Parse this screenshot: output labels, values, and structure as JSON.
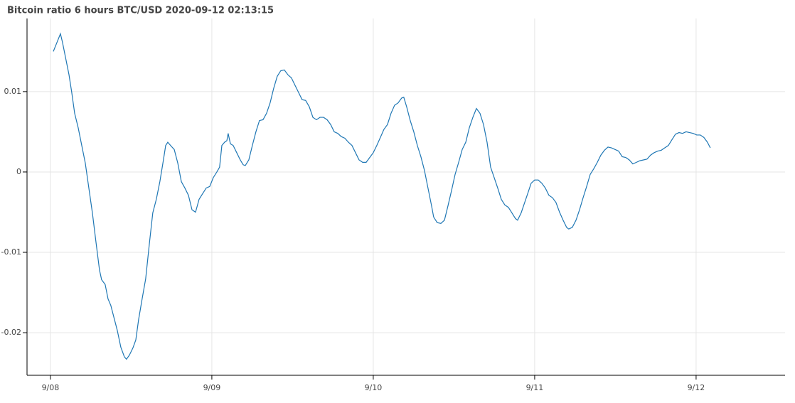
{
  "chart_data": {
    "type": "line",
    "title": "Bitcoin ratio 6 hours BTC/USD 2020-09-12 02:13:15",
    "color": "#1f77b4",
    "grid": true,
    "xlim": [
      7.855,
      12.551
    ],
    "ylim": [
      -0.0253,
      0.0191
    ],
    "xticks": [
      {
        "value": 8,
        "label": "9/08"
      },
      {
        "value": 9,
        "label": "9/09"
      },
      {
        "value": 10,
        "label": "9/10"
      },
      {
        "value": 11,
        "label": "9/11"
      },
      {
        "value": 12,
        "label": "9/12"
      }
    ],
    "yticks": [
      -0.02,
      -0.01,
      0,
      0.01
    ],
    "x": [
      8.018,
      8.04,
      8.062,
      8.075,
      8.093,
      8.115,
      8.132,
      8.15,
      8.172,
      8.194,
      8.216,
      8.238,
      8.26,
      8.282,
      8.304,
      8.317,
      8.339,
      8.357,
      8.374,
      8.392,
      8.414,
      8.436,
      8.458,
      8.471,
      8.489,
      8.511,
      8.529,
      8.546,
      8.568,
      8.59,
      8.612,
      8.634,
      8.656,
      8.678,
      8.7,
      8.714,
      8.727,
      8.744,
      8.767,
      8.789,
      8.811,
      8.833,
      8.855,
      8.877,
      8.899,
      8.921,
      8.943,
      8.965,
      8.987,
      9.009,
      9.031,
      9.048,
      9.062,
      9.079,
      9.093,
      9.101,
      9.115,
      9.132,
      9.154,
      9.176,
      9.194,
      9.207,
      9.229,
      9.251,
      9.273,
      9.295,
      9.317,
      9.339,
      9.361,
      9.383,
      9.405,
      9.427,
      9.449,
      9.471,
      9.493,
      9.515,
      9.537,
      9.559,
      9.581,
      9.604,
      9.626,
      9.648,
      9.67,
      9.692,
      9.714,
      9.736,
      9.758,
      9.78,
      9.802,
      9.824,
      9.846,
      9.868,
      9.89,
      9.912,
      9.934,
      9.956,
      9.978,
      10.0,
      10.022,
      10.044,
      10.066,
      10.088,
      10.11,
      10.132,
      10.154,
      10.176,
      10.189,
      10.207,
      10.229,
      10.251,
      10.273,
      10.295,
      10.317,
      10.339,
      10.361,
      10.374,
      10.396,
      10.419,
      10.441,
      10.463,
      10.485,
      10.507,
      10.529,
      10.551,
      10.573,
      10.595,
      10.617,
      10.639,
      10.661,
      10.683,
      10.705,
      10.727,
      10.749,
      10.771,
      10.793,
      10.815,
      10.837,
      10.859,
      10.881,
      10.894,
      10.916,
      10.938,
      10.96,
      10.978,
      11.0,
      11.022,
      11.044,
      11.066,
      11.088,
      11.11,
      11.132,
      11.154,
      11.176,
      11.198,
      11.211,
      11.233,
      11.256,
      11.278,
      11.3,
      11.322,
      11.344,
      11.366,
      11.388,
      11.41,
      11.432,
      11.454,
      11.476,
      11.498,
      11.52,
      11.542,
      11.564,
      11.586,
      11.608,
      11.63,
      11.652,
      11.674,
      11.696,
      11.718,
      11.74,
      11.762,
      11.784,
      11.806,
      11.828,
      11.85,
      11.872,
      11.894,
      11.916,
      11.938,
      11.96,
      11.982,
      12.004,
      12.026,
      12.048,
      12.07,
      12.088
    ],
    "values": [
      0.015,
      0.0161,
      0.0172,
      0.0161,
      0.0143,
      0.0121,
      0.0099,
      0.0073,
      0.0055,
      0.0033,
      0.0011,
      -0.002,
      -0.0051,
      -0.0087,
      -0.0122,
      -0.0134,
      -0.014,
      -0.0158,
      -0.0166,
      -0.018,
      -0.0197,
      -0.0218,
      -0.023,
      -0.0233,
      -0.0228,
      -0.0219,
      -0.0209,
      -0.0184,
      -0.0158,
      -0.0133,
      -0.0091,
      -0.0051,
      -0.0034,
      -0.0012,
      0.0015,
      0.0033,
      0.0037,
      0.0033,
      0.0028,
      0.0011,
      -0.0012,
      -0.002,
      -0.0029,
      -0.0047,
      -0.005,
      -0.0034,
      -0.0027,
      -0.002,
      -0.0018,
      -0.0007,
      0.0,
      0.0006,
      0.0033,
      0.0037,
      0.0039,
      0.0048,
      0.0035,
      0.0033,
      0.0024,
      0.0015,
      0.0009,
      0.0008,
      0.0015,
      0.0033,
      0.005,
      0.0064,
      0.0065,
      0.0073,
      0.0086,
      0.0104,
      0.0119,
      0.0126,
      0.0127,
      0.0121,
      0.0117,
      0.0108,
      0.0099,
      0.009,
      0.0089,
      0.0081,
      0.0068,
      0.0065,
      0.0068,
      0.0068,
      0.0065,
      0.0059,
      0.005,
      0.0048,
      0.0044,
      0.0042,
      0.0037,
      0.0033,
      0.0024,
      0.0015,
      0.0012,
      0.0012,
      0.0018,
      0.0024,
      0.0033,
      0.0043,
      0.0053,
      0.0059,
      0.0073,
      0.0083,
      0.0086,
      0.0092,
      0.0093,
      0.0081,
      0.0064,
      0.005,
      0.0033,
      0.0019,
      0.0002,
      -0.002,
      -0.0042,
      -0.0056,
      -0.0063,
      -0.0064,
      -0.006,
      -0.0042,
      -0.0023,
      -0.0003,
      0.0012,
      0.0028,
      0.0037,
      0.0055,
      0.0068,
      0.0079,
      0.0073,
      0.0059,
      0.0037,
      0.0006,
      -0.0007,
      -0.002,
      -0.0034,
      -0.0041,
      -0.0044,
      -0.0051,
      -0.0058,
      -0.006,
      -0.0051,
      -0.0038,
      -0.0025,
      -0.0014,
      -0.001,
      -0.001,
      -0.0014,
      -0.002,
      -0.0029,
      -0.0032,
      -0.0038,
      -0.005,
      -0.006,
      -0.0069,
      -0.0071,
      -0.0069,
      -0.006,
      -0.0047,
      -0.0032,
      -0.0018,
      -0.0003,
      0.0004,
      0.0012,
      0.0021,
      0.0027,
      0.0031,
      0.003,
      0.0028,
      0.0026,
      0.0019,
      0.0018,
      0.0015,
      0.001,
      0.0012,
      0.0014,
      0.0015,
      0.0016,
      0.0021,
      0.0024,
      0.0026,
      0.0027,
      0.003,
      0.0033,
      0.004,
      0.0047,
      0.0049,
      0.0048,
      0.005,
      0.0049,
      0.0048,
      0.0046,
      0.0046,
      0.0043,
      0.0037,
      0.003
    ]
  }
}
